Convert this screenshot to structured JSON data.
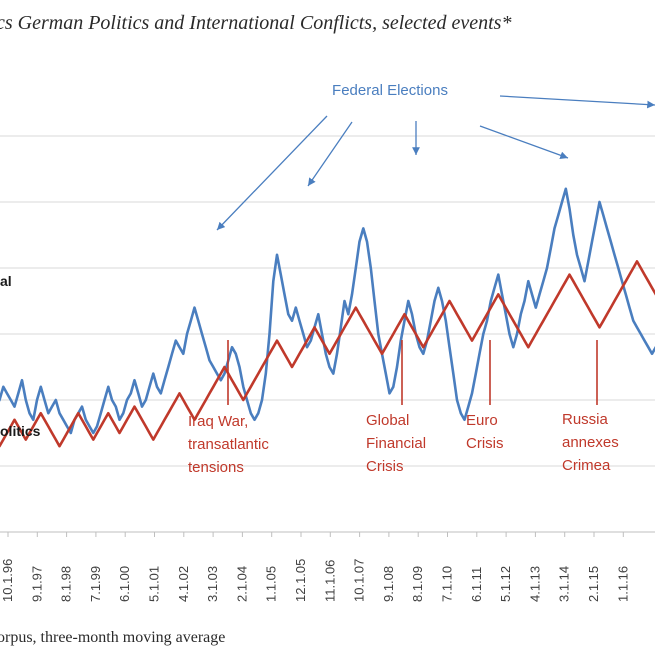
{
  "title": "cs German Politics and International Conflicts, selected events*",
  "source": "orpus, three-month moving average",
  "chart_data": {
    "type": "line",
    "x_ticks": [
      "10.1.96",
      "9.1.97",
      "8.1.98",
      "7.1.99",
      "6.1.00",
      "5.1.01",
      "4.1.02",
      "3.1.03",
      "2.1.04",
      "1.1.05",
      "12.1.05",
      "11.1.06",
      "10.1.07",
      "9.1.08",
      "8.1.09",
      "7.1.10",
      "6.1.11",
      "5.1.12",
      "4.1.13",
      "3.1.14",
      "2.1.15",
      "1.1.16"
    ],
    "grid": true,
    "series": [
      {
        "name": "al",
        "color": "#4a7ebf",
        "values": [
          40,
          39,
          40,
          42,
          41,
          40,
          39,
          41,
          43,
          40,
          38,
          37,
          40,
          42,
          40,
          38,
          39,
          40,
          38,
          37,
          36,
          35,
          37,
          38,
          39,
          37,
          36,
          35,
          36,
          38,
          40,
          42,
          40,
          39,
          37,
          38,
          40,
          41,
          43,
          41,
          39,
          40,
          42,
          44,
          42,
          41,
          43,
          45,
          47,
          49,
          48,
          47,
          50,
          52,
          54,
          52,
          50,
          48,
          46,
          45,
          44,
          43,
          44,
          46,
          48,
          47,
          45,
          42,
          40,
          38,
          37,
          38,
          40,
          44,
          50,
          58,
          62,
          59,
          56,
          53,
          52,
          54,
          52,
          50,
          48,
          49,
          51,
          53,
          50,
          47,
          45,
          44,
          47,
          51,
          55,
          53,
          56,
          60,
          64,
          66,
          64,
          60,
          55,
          50,
          47,
          44,
          41,
          42,
          45,
          49,
          52,
          55,
          53,
          50,
          48,
          47,
          49,
          52,
          55,
          57,
          55,
          52,
          48,
          44,
          40,
          38,
          37,
          39,
          41,
          44,
          47,
          50,
          52,
          55,
          57,
          59,
          56,
          53,
          50,
          48,
          50,
          53,
          55,
          58,
          56,
          54,
          56,
          58,
          60,
          63,
          66,
          68,
          70,
          72,
          69,
          65,
          62,
          60,
          58,
          61,
          64,
          67,
          70,
          68,
          66,
          64,
          62,
          60,
          58,
          56,
          54,
          52,
          51,
          50,
          49,
          48,
          47,
          48,
          49,
          50,
          51
        ],
        "labels": [
          {
            "text": "al"
          }
        ]
      },
      {
        "name": "olitics",
        "color": "#c0392b",
        "values": [
          35,
          34,
          33,
          34,
          35,
          36,
          37,
          36,
          35,
          34,
          35,
          36,
          37,
          38,
          37,
          36,
          35,
          34,
          33,
          34,
          35,
          36,
          37,
          38,
          37,
          36,
          35,
          34,
          35,
          36,
          37,
          38,
          37,
          36,
          35,
          36,
          37,
          38,
          39,
          38,
          37,
          36,
          35,
          34,
          35,
          36,
          37,
          38,
          39,
          40,
          41,
          40,
          39,
          38,
          37,
          38,
          39,
          40,
          41,
          42,
          43,
          44,
          45,
          44,
          43,
          42,
          41,
          40,
          41,
          42,
          43,
          44,
          45,
          46,
          47,
          48,
          49,
          48,
          47,
          46,
          45,
          46,
          47,
          48,
          49,
          50,
          51,
          50,
          49,
          48,
          47,
          48,
          49,
          50,
          51,
          52,
          53,
          54,
          53,
          52,
          51,
          50,
          49,
          48,
          47,
          48,
          49,
          50,
          51,
          52,
          53,
          52,
          51,
          50,
          49,
          48,
          49,
          50,
          51,
          52,
          53,
          54,
          55,
          54,
          53,
          52,
          51,
          50,
          49,
          50,
          51,
          52,
          53,
          54,
          55,
          56,
          55,
          54,
          53,
          52,
          51,
          50,
          49,
          48,
          49,
          50,
          51,
          52,
          53,
          54,
          55,
          56,
          57,
          58,
          59,
          58,
          57,
          56,
          55,
          54,
          53,
          52,
          51,
          52,
          53,
          54,
          55,
          56,
          57,
          58,
          59,
          60,
          61,
          60,
          59,
          58,
          57,
          56,
          55,
          54,
          53
        ]
      }
    ],
    "annotations": [
      {
        "text": "Federal Elections",
        "color": "#4a7ebf"
      },
      {
        "text": "Iraq War,\ntransatlantic\ntensions",
        "color": "#c0392b"
      },
      {
        "text": "Global\nFinancial\nCrisis",
        "color": "#c0392b"
      },
      {
        "text": "Euro\nCrisis",
        "color": "#c0392b"
      },
      {
        "text": "Russia\nannexes\nCrimea",
        "color": "#c0392b"
      }
    ],
    "series_labels": [
      "al",
      "olitics"
    ]
  }
}
